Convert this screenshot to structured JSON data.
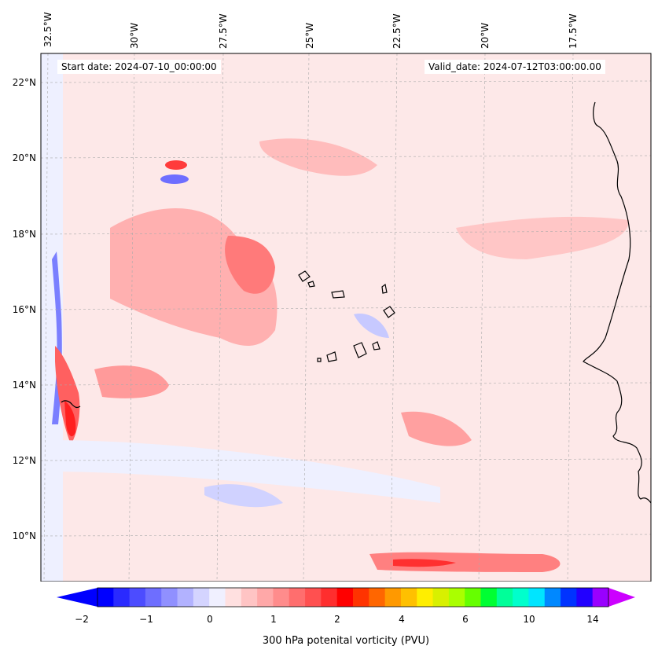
{
  "map": {
    "start_label": "Start date: 2024-07-10_00:00:00",
    "valid_label": "Valid_date: 2024-07-12T03:00:00.00",
    "lon_labels": [
      "32.5°W",
      "30°W",
      "27.5°W",
      "25°W",
      "22.5°W",
      "20°W",
      "17.5°W"
    ],
    "lat_labels": [
      "22°N",
      "20°N",
      "18°N",
      "16°N",
      "14°N",
      "12°N",
      "10°N"
    ],
    "grid": "on",
    "colors": {
      "background_field": "#fde8e8",
      "coast": "#000000",
      "negative_light": "#eef0ff",
      "negative_mid": "#c7c9ff",
      "negative_strong": "#4f56ff",
      "positive_light": "#ffd7d7",
      "positive_mid": "#ff9f9f",
      "positive_strong": "#ff2b2b"
    }
  },
  "colorbar": {
    "title": "300 hPa potenital vorticity (PVU)",
    "tick_labels": [
      "−2",
      "−1",
      "0",
      "1",
      "2",
      "4",
      "6",
      "10",
      "14"
    ],
    "colors": [
      "#0000ff",
      "#2a2aff",
      "#4c4cff",
      "#6e6eff",
      "#9090ff",
      "#b2b2ff",
      "#d4d4ff",
      "#f0f0ff",
      "#ffe0e0",
      "#ffc4c4",
      "#ffa8a8",
      "#ff8c8c",
      "#ff6e6e",
      "#ff5050",
      "#ff2e2e",
      "#ff0000",
      "#ff3300",
      "#ff6600",
      "#ff9900",
      "#ffc000",
      "#ffee00",
      "#d8f000",
      "#aaff00",
      "#66ff00",
      "#00ff33",
      "#00ff99",
      "#00ffcc",
      "#00e5ff",
      "#0088ff",
      "#0033ff",
      "#2200ff",
      "#9900ff"
    ],
    "extend_min_color": "#0000ff",
    "extend_max_color": "#cc00ff"
  }
}
